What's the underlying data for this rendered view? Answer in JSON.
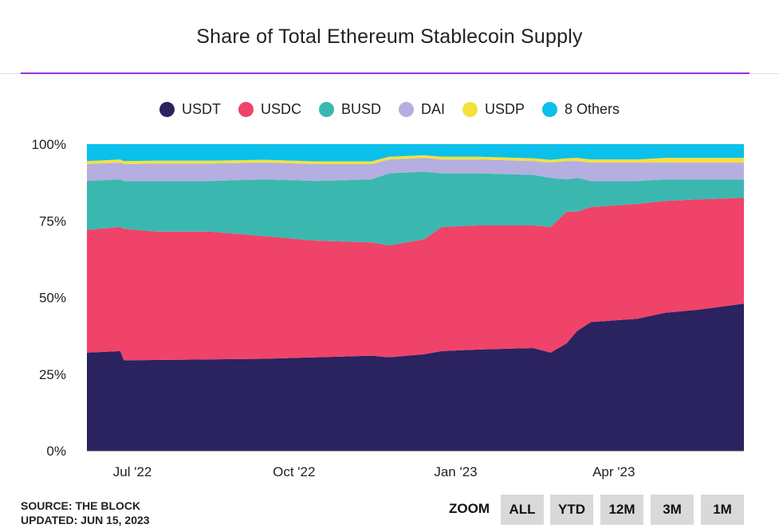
{
  "title": "Share of Total Ethereum Stablecoin Supply",
  "source": "SOURCE: THE BLOCK",
  "updated": "UPDATED: JUN 15, 2023",
  "zoom": {
    "label": "ZOOM",
    "buttons": [
      "ALL",
      "YTD",
      "12M",
      "3M",
      "1M"
    ]
  },
  "colors": {
    "USDT": "#2b2260",
    "USDC": "#ef4369",
    "BUSD": "#3ab8b0",
    "DAI": "#b5aee0",
    "USDP": "#f5e13c",
    "8 Others": "#0bc0ea"
  },
  "chart_data": {
    "type": "area",
    "stacking": "percent",
    "title": "Share of Total Ethereum Stablecoin Supply",
    "xlabel": "",
    "ylabel": "",
    "x_range": [
      "2022-06-06",
      "2023-06-15"
    ],
    "y_range": [
      0,
      100
    ],
    "y_ticks": [
      "0%",
      "25%",
      "50%",
      "75%",
      "100%"
    ],
    "x_ticks": [
      {
        "date": "2022-07-01",
        "label": "Jul '22"
      },
      {
        "date": "2022-10-01",
        "label": "Oct '22"
      },
      {
        "date": "2023-01-01",
        "label": "Jan '23"
      },
      {
        "date": "2023-04-01",
        "label": "Apr '23"
      }
    ],
    "legend_position": "top-center",
    "x": [
      "2022-06-06",
      "2022-06-25",
      "2022-06-27",
      "2022-07-15",
      "2022-08-15",
      "2022-09-15",
      "2022-10-15",
      "2022-11-15",
      "2022-11-25",
      "2022-12-15",
      "2022-12-25",
      "2023-01-15",
      "2023-02-15",
      "2023-02-25",
      "2023-03-06",
      "2023-03-12",
      "2023-03-20",
      "2023-04-15",
      "2023-05-01",
      "2023-05-20",
      "2023-06-15"
    ],
    "series": [
      {
        "name": "USDT",
        "values": [
          32,
          32.5,
          29.5,
          29.6,
          29.8,
          30.0,
          30.5,
          31.0,
          30.5,
          31.5,
          32.5,
          33.0,
          33.5,
          32.0,
          35.0,
          39.0,
          42.0,
          43.0,
          45.0,
          46.0,
          48.0
        ]
      },
      {
        "name": "USDC",
        "values": [
          40,
          40.5,
          42.9,
          41.9,
          41.7,
          40.0,
          38.0,
          37.0,
          36.5,
          37.5,
          40.5,
          40.5,
          40.0,
          41.0,
          43.0,
          39.0,
          37.5,
          37.5,
          36.5,
          36.0,
          34.5
        ]
      },
      {
        "name": "BUSD",
        "values": [
          16,
          15.5,
          15.6,
          16.5,
          16.5,
          18.5,
          19.5,
          20.5,
          23.5,
          22.0,
          17.5,
          17.0,
          16.5,
          16.0,
          10.5,
          11.0,
          8.5,
          7.5,
          7.0,
          6.5,
          6.0
        ]
      },
      {
        "name": "DAI",
        "values": [
          5.5,
          5.5,
          5.5,
          5.7,
          5.7,
          5.5,
          5.5,
          5.0,
          4.5,
          4.5,
          4.5,
          4.5,
          4.5,
          5.0,
          6.0,
          5.5,
          6.0,
          6.0,
          5.5,
          5.5,
          5.5
        ]
      },
      {
        "name": "USDP",
        "values": [
          1,
          1,
          1,
          0.9,
          0.9,
          0.9,
          0.9,
          0.9,
          0.9,
          0.9,
          0.9,
          0.9,
          0.9,
          0.9,
          0.9,
          1.0,
          1.0,
          1.0,
          1.5,
          1.5,
          1.5
        ]
      },
      {
        "name": "8 Others",
        "values": [
          5.5,
          5.0,
          5.5,
          5.4,
          5.4,
          5.1,
          5.6,
          5.6,
          4.1,
          3.6,
          4.1,
          4.1,
          4.6,
          5.1,
          4.6,
          4.5,
          5.0,
          5.0,
          4.5,
          4.5,
          4.5
        ]
      }
    ]
  }
}
